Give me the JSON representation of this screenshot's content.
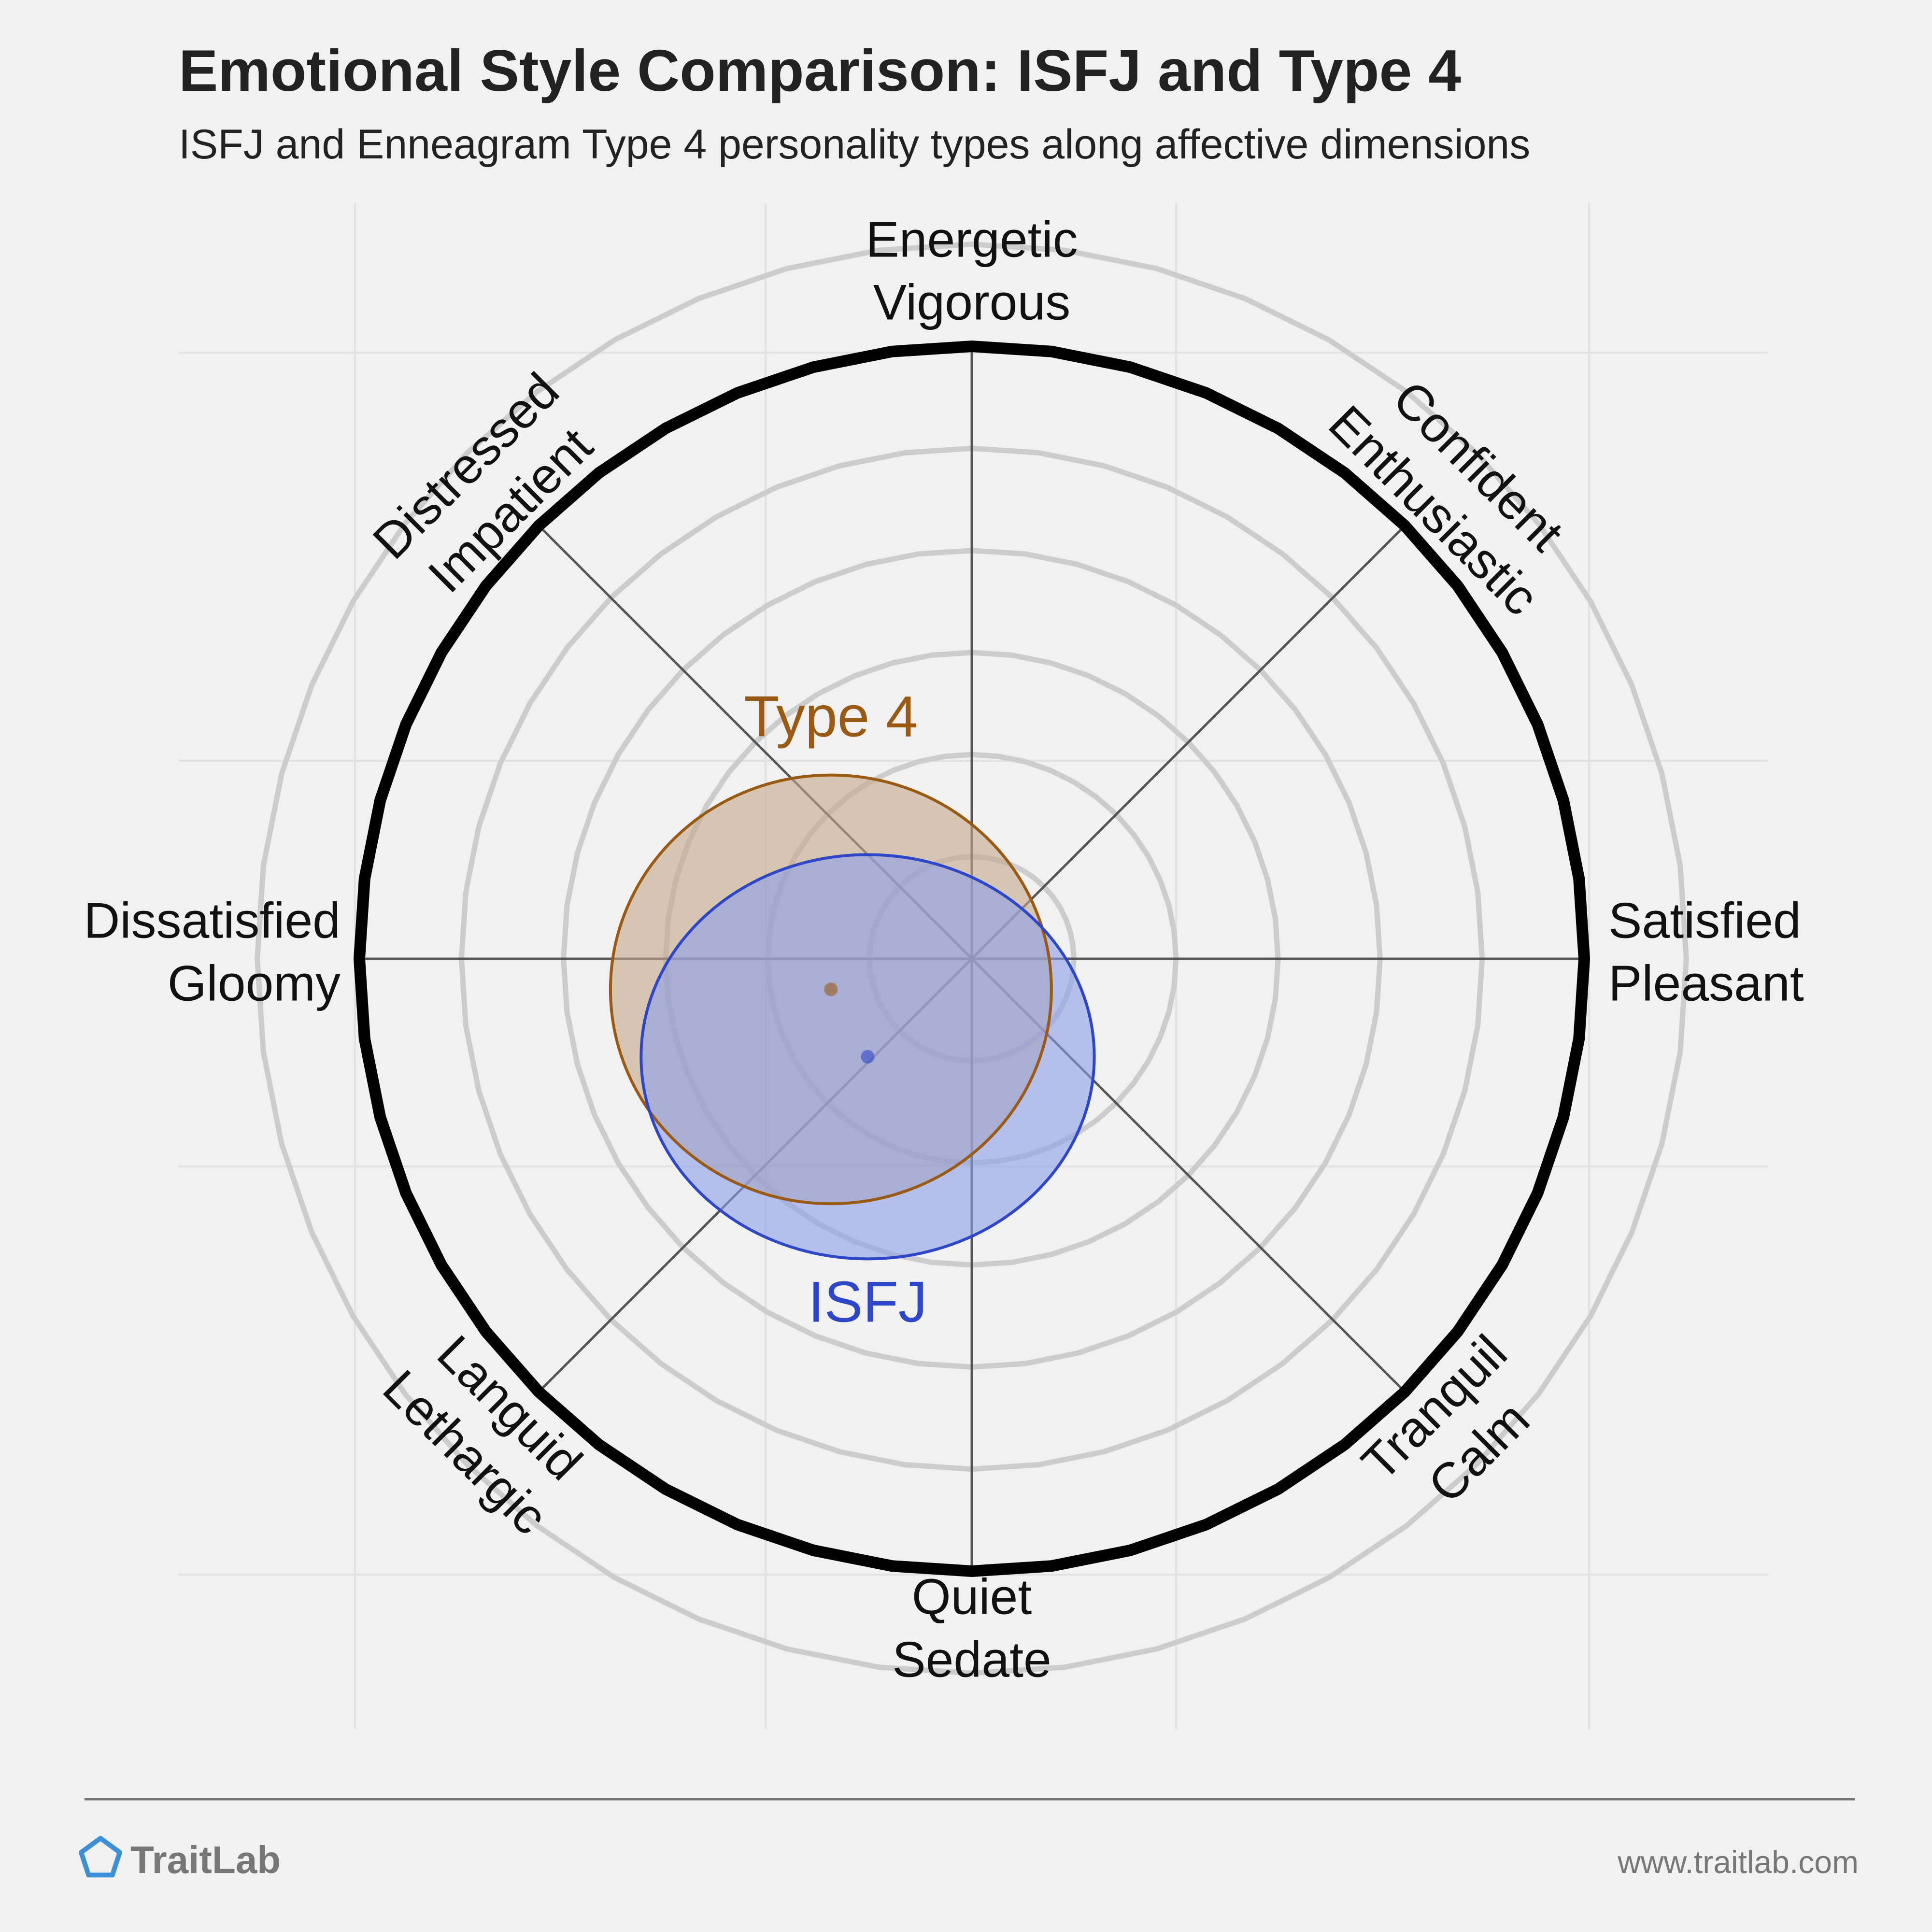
{
  "chart_data": {
    "type": "scatter",
    "title": "Emotional Style Comparison: ISFJ and Type 4",
    "subtitle": "ISFJ and Enneagram Type 4 personality types along affective dimensions",
    "axes": [
      {
        "id": "energetic",
        "lines": [
          "Energetic",
          "Vigorous"
        ]
      },
      {
        "id": "confident",
        "lines": [
          "Confident",
          "Enthusiastic"
        ]
      },
      {
        "id": "satisfied",
        "lines": [
          "Satisfied",
          "Pleasant"
        ]
      },
      {
        "id": "tranquil",
        "lines": [
          "Tranquil",
          "Calm"
        ]
      },
      {
        "id": "quiet",
        "lines": [
          "Quiet",
          "Sedate"
        ]
      },
      {
        "id": "languid",
        "lines": [
          "Languid",
          "Lethargic"
        ]
      },
      {
        "id": "dissatisfied",
        "lines": [
          "Dissatisfied",
          "Gloomy"
        ]
      },
      {
        "id": "distressed",
        "lines": [
          "Distressed",
          "Impatient"
        ]
      }
    ],
    "x_range": [
      -1,
      1
    ],
    "y_range": [
      -1,
      1
    ],
    "grid": true,
    "series": [
      {
        "name": "Type 4",
        "x": -0.23,
        "y": -0.05,
        "rx": 0.36,
        "ry": 0.35,
        "color": "#9a5a14",
        "fill": "#c4a887"
      },
      {
        "name": "ISFJ",
        "x": -0.17,
        "y": -0.16,
        "rx": 0.37,
        "ry": 0.33,
        "color": "#2d47c8",
        "fill": "#8c9fe8"
      }
    ]
  },
  "footer": {
    "brand": "TraitLab",
    "url": "www.traitlab.com",
    "brand_color": "#3d8fd6"
  }
}
